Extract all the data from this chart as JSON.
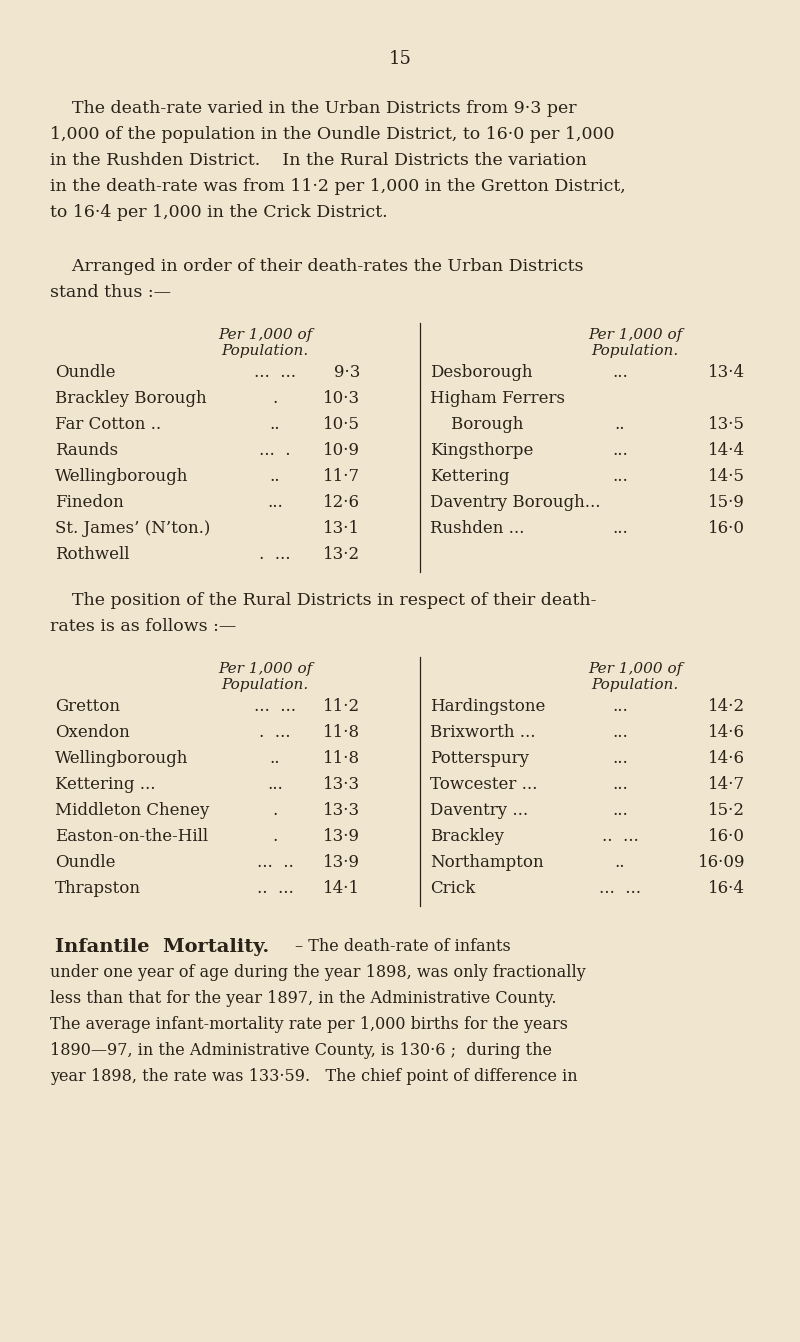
{
  "bg_color": "#f0e6d0",
  "text_color": "#2a2218",
  "page_number": "15",
  "para1_lines": [
    "    The death-rate varied in the Urban Districts from 9·3 per",
    "1,000 of the population in the Oundle District, to 16·0 per 1,000",
    "in the Rushden District.    In the Rural Districts the variation",
    "in the death-rate was from 11·2 per 1,000 in the Gretton District,",
    "to 16·4 per 1,000 in the Crick District."
  ],
  "para2_lines": [
    "    Arranged in order of their death-rates the Urban Districts",
    "stand thus :—"
  ],
  "urban_hdr": "Per 1,000 of\nPopulation.",
  "urban_left_names": [
    "Oundle",
    "Brackley Borough",
    "Far Cotton ..",
    "Raunds",
    "Wellingborough",
    "Finedon",
    "St. James’ (N’ton.)",
    "Rothwell"
  ],
  "urban_left_dots": [
    "...  ...",
    ".",
    "..",
    "...  .",
    "..",
    "...",
    "",
    ".  ..."
  ],
  "urban_left_vals": [
    "9·3",
    "10·3",
    "10·5",
    "10·9",
    "11·7",
    "12·6",
    "13·1",
    "13·2"
  ],
  "urban_right_names": [
    "Desborough",
    "Higham Ferrers",
    "    Borough",
    "Kingsthorpe",
    "Kettering",
    "Daventry Borough...",
    "Rushden ..."
  ],
  "urban_right_dots": [
    "...",
    "",
    "..",
    "...",
    "...",
    "",
    "..."
  ],
  "urban_right_vals": [
    "13·4",
    "",
    "13·5",
    "14·4",
    "14·5",
    "15·9",
    "16·0"
  ],
  "para3_lines": [
    "    The position of the Rural Districts in respect of their death-",
    "rates is as follows :—"
  ],
  "rural_left_names": [
    "Gretton",
    "Oxendon",
    "Wellingborough",
    "Kettering ...",
    "Middleton Cheney",
    "Easton-on-the-Hill",
    "Oundle",
    "Thrapston"
  ],
  "rural_left_dots": [
    "...  ...",
    ".  ...",
    "..",
    "...",
    ".",
    ".",
    "...  ..",
    "..  ..."
  ],
  "rural_left_vals": [
    "11·2",
    "11·8",
    "11·8",
    "13·3",
    "13·3",
    "13·9",
    "13·9",
    "14·1"
  ],
  "rural_right_names": [
    "Hardingstone",
    "Brixworth ...",
    "Potterspury",
    "Towcester ...",
    "Daventry ...",
    "Brackley",
    "Northampton",
    "Crick"
  ],
  "rural_right_dots": [
    "...",
    "...",
    "...",
    "...",
    "...",
    "..  ...",
    "..",
    "...  ..."
  ],
  "rural_right_vals": [
    "14·2",
    "14·6",
    "14·6",
    "14·7",
    "15·2",
    "16·0",
    "16·09",
    "16·4"
  ],
  "infantile_bold": "Infantile  Mortality.",
  "infantile_rest_line1": "– The death-rate of infants",
  "infantile_rest_lines": [
    "under one year of age during the year 1898, was only fractionally",
    "less than that for the year 1897, in the Administrative County.",
    "The average infant-mortality rate per 1,000 births for the years",
    "1890—97, in the Administrative County, is 130·6 ;  during the",
    "year 1898, the rate was 133·59.   The chief point of difference in"
  ]
}
